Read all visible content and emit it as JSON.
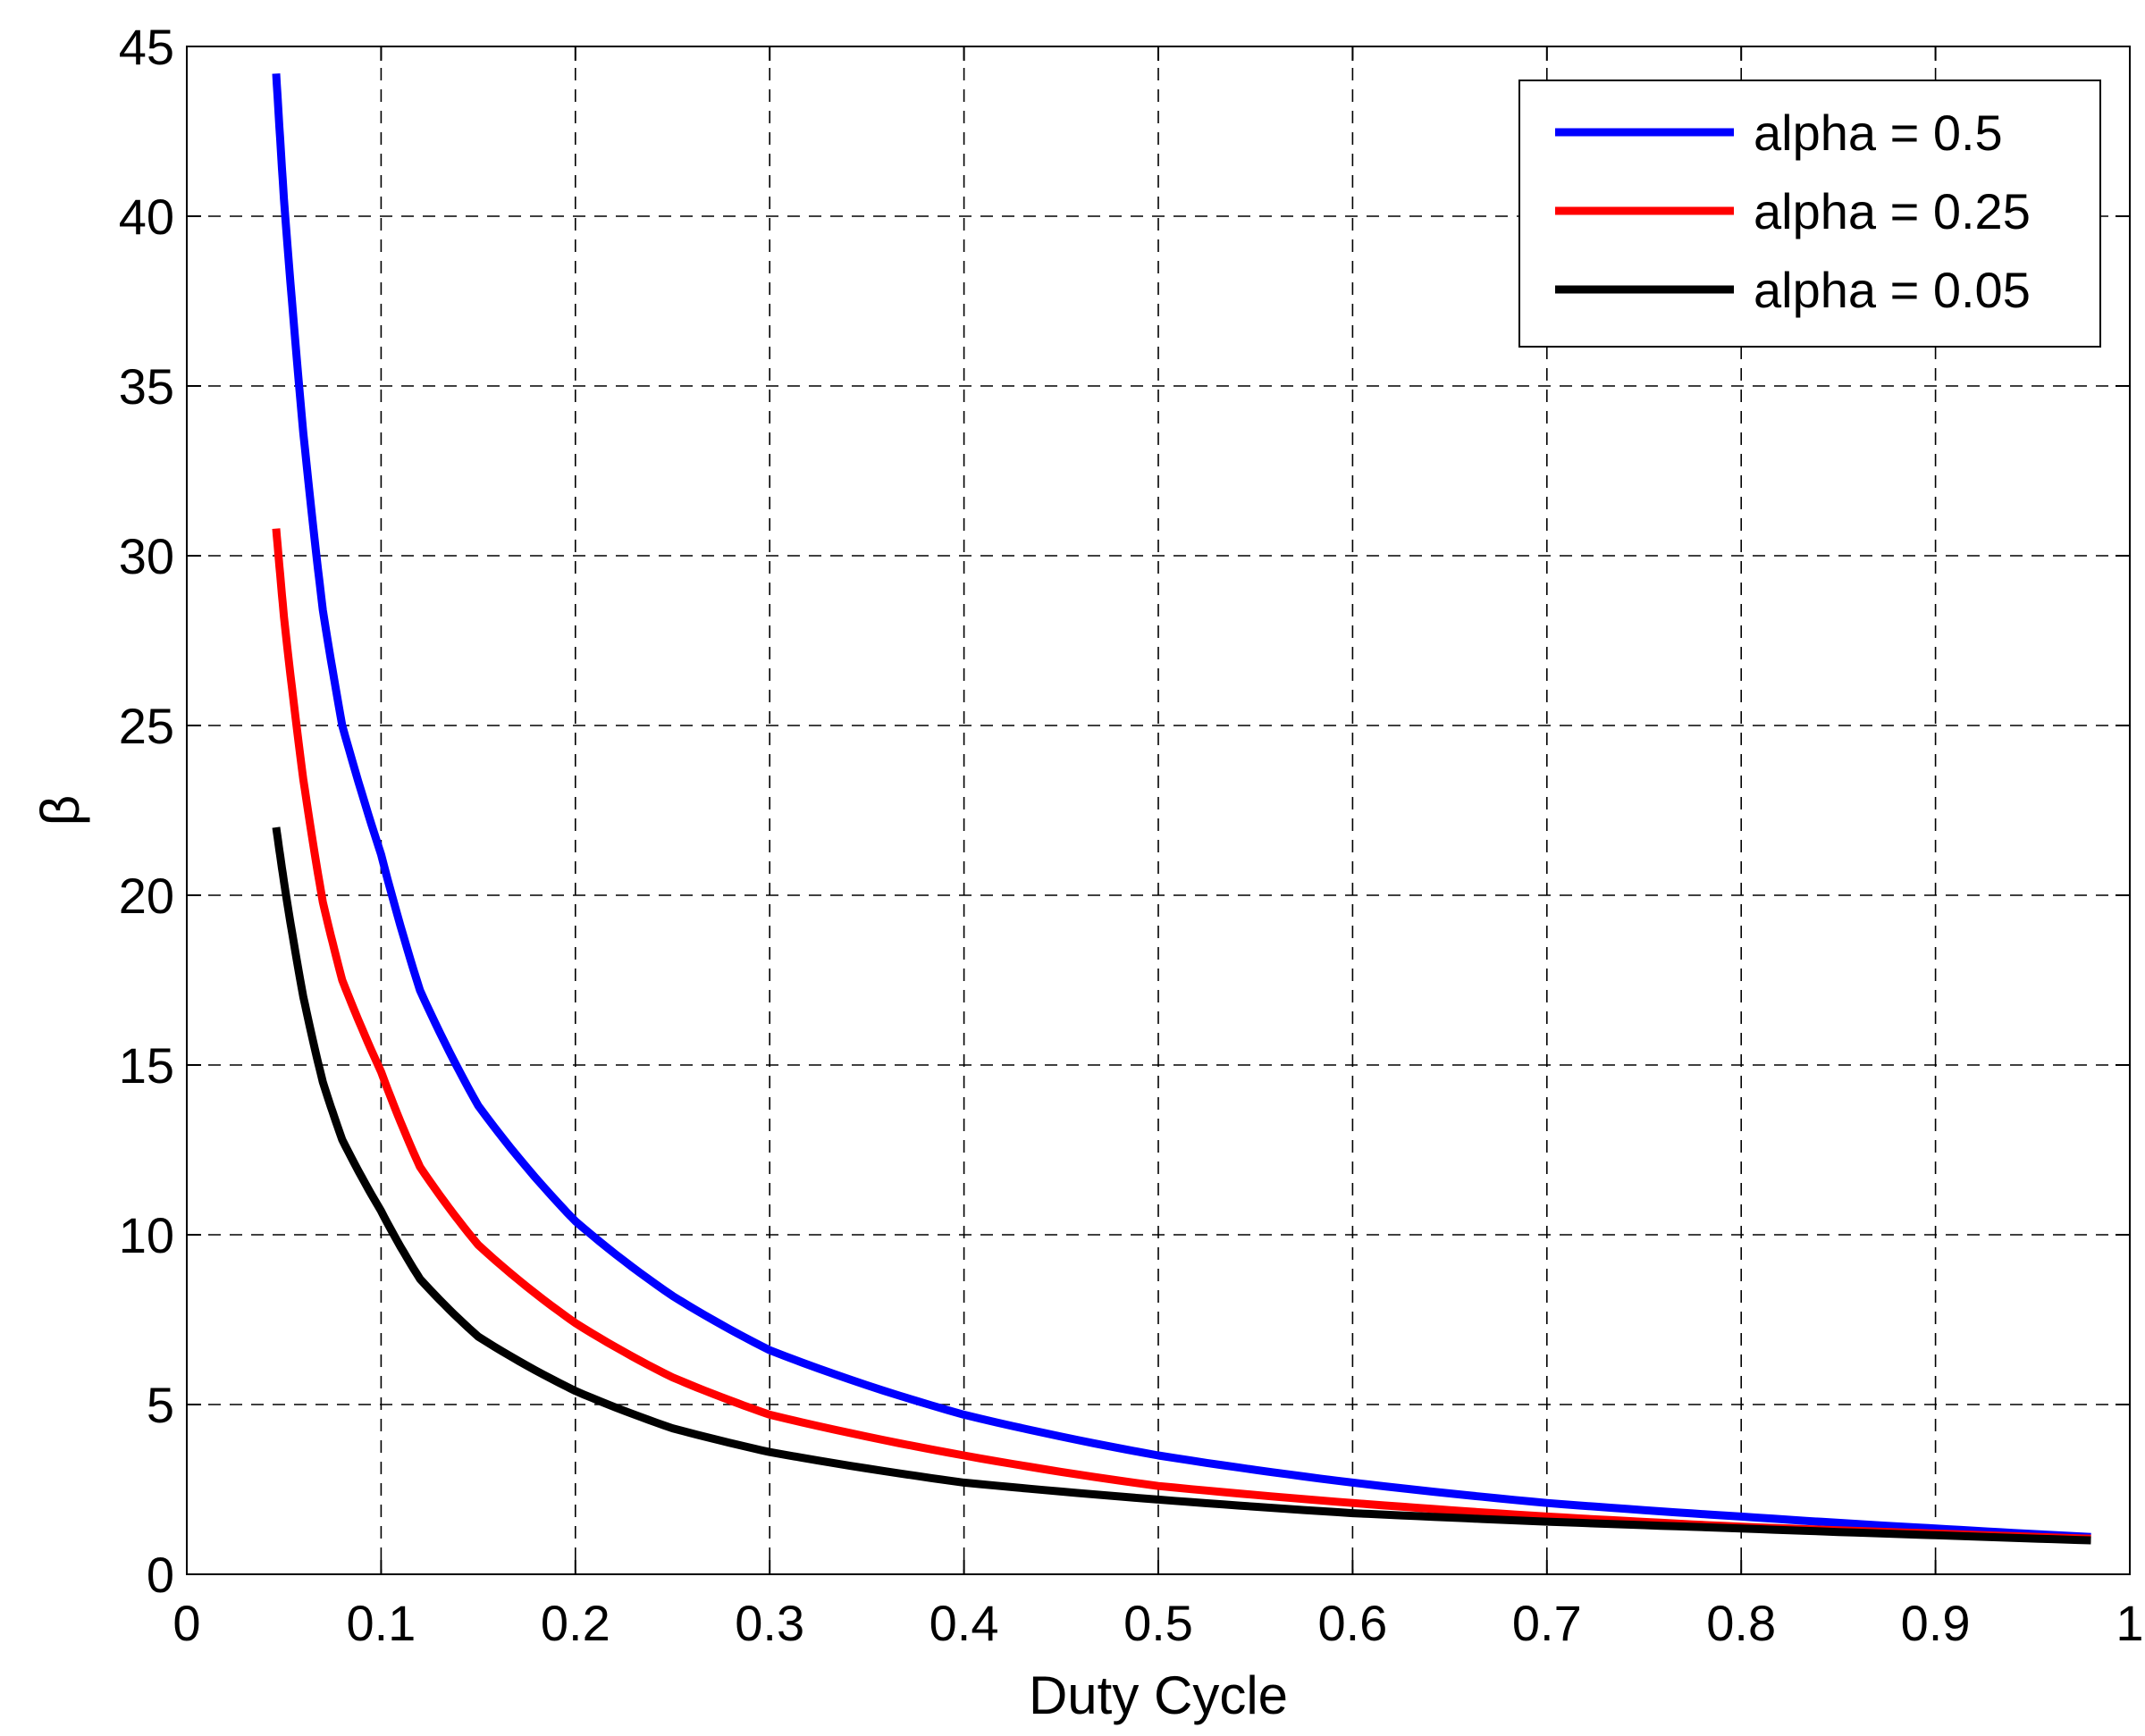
{
  "chart_data": {
    "type": "line",
    "xlabel": "Duty Cycle",
    "ylabel": "β",
    "xlim": [
      0,
      1
    ],
    "ylim": [
      0,
      45
    ],
    "xticks": [
      0,
      0.1,
      0.2,
      0.3,
      0.4,
      0.5,
      0.6,
      0.7,
      0.8,
      0.9,
      1
    ],
    "xtick_labels": [
      "0",
      "0.1",
      "0.2",
      "0.3",
      "0.4",
      "0.5",
      "0.6",
      "0.7",
      "0.8",
      "0.9",
      "1"
    ],
    "yticks": [
      0,
      5,
      10,
      15,
      20,
      25,
      30,
      35,
      40,
      45
    ],
    "ytick_labels": [
      "0",
      "5",
      "10",
      "15",
      "20",
      "25",
      "30",
      "35",
      "40",
      "45"
    ],
    "grid": true,
    "legend_position": "top-right",
    "x": [
      0.046,
      0.05,
      0.06,
      0.07,
      0.08,
      0.1,
      0.12,
      0.15,
      0.2,
      0.25,
      0.3,
      0.4,
      0.5,
      0.6,
      0.7,
      0.8,
      0.9,
      0.98
    ],
    "series": [
      {
        "name": "alpha = 0.5",
        "color": "#0000ff",
        "values": [
          44.2,
          40.5,
          33.6,
          28.4,
          25.0,
          21.2,
          17.2,
          13.8,
          10.4,
          8.2,
          6.6,
          4.7,
          3.5,
          2.7,
          2.1,
          1.7,
          1.35,
          1.1
        ]
      },
      {
        "name": "alpha = 0.25",
        "color": "#ff0000",
        "values": [
          30.8,
          28.2,
          23.4,
          19.8,
          17.5,
          14.8,
          12.0,
          9.7,
          7.4,
          5.8,
          4.7,
          3.5,
          2.6,
          2.1,
          1.7,
          1.4,
          1.2,
          1.05
        ]
      },
      {
        "name": "alpha = 0.05",
        "color": "#000000",
        "values": [
          22.0,
          20.4,
          17.0,
          14.5,
          12.8,
          10.7,
          8.7,
          7.0,
          5.4,
          4.3,
          3.6,
          2.7,
          2.2,
          1.8,
          1.55,
          1.35,
          1.15,
          1.0
        ]
      }
    ]
  }
}
